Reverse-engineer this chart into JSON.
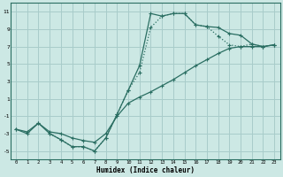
{
  "xlabel": "Humidex (Indice chaleur)",
  "bg_color": "#cce8e4",
  "grid_color": "#a8ccca",
  "line_color": "#2a6e62",
  "xlim": [
    -0.5,
    23.5
  ],
  "ylim": [
    -6.0,
    12.0
  ],
  "xticks": [
    0,
    1,
    2,
    3,
    4,
    5,
    6,
    7,
    8,
    9,
    10,
    11,
    12,
    13,
    14,
    15,
    16,
    17,
    18,
    19,
    20,
    21,
    22,
    23
  ],
  "yticks": [
    -5,
    -3,
    -1,
    1,
    3,
    5,
    7,
    9,
    11
  ],
  "line1_x": [
    0,
    1,
    2,
    3,
    4,
    5,
    6,
    7,
    8,
    9,
    10,
    11,
    12,
    13,
    14,
    15,
    16,
    17,
    18,
    19,
    20,
    21,
    22,
    23
  ],
  "line1_y": [
    -2.5,
    -3.0,
    -1.8,
    -3.0,
    -3.7,
    -4.5,
    -4.5,
    -5.0,
    -3.5,
    -0.8,
    2.0,
    4.8,
    10.8,
    10.5,
    10.8,
    10.8,
    9.5,
    9.3,
    9.2,
    8.5,
    8.3,
    7.3,
    7.0,
    7.2
  ],
  "line2_x": [
    3,
    4,
    5,
    6,
    7,
    8,
    9,
    10,
    11,
    12,
    13,
    14,
    15,
    16,
    17,
    18,
    19,
    20,
    21,
    22,
    23
  ],
  "line2_y": [
    -3.0,
    -3.7,
    -4.5,
    -4.5,
    -5.0,
    -3.5,
    -0.8,
    2.0,
    4.0,
    9.2,
    10.5,
    10.8,
    10.8,
    9.5,
    9.3,
    8.2,
    7.2,
    7.0,
    7.3,
    7.0,
    7.2
  ],
  "line3_x": [
    0,
    1,
    2,
    3,
    4,
    5,
    6,
    7,
    8,
    9,
    10,
    11,
    12,
    13,
    14,
    15,
    16,
    17,
    18,
    19,
    20,
    21,
    22,
    23
  ],
  "line3_y": [
    -2.5,
    -2.8,
    -1.8,
    -2.8,
    -3.0,
    -3.5,
    -3.8,
    -4.0,
    -3.0,
    -1.0,
    0.5,
    1.2,
    1.8,
    2.5,
    3.2,
    4.0,
    4.8,
    5.5,
    6.2,
    6.8,
    7.0,
    7.0,
    7.0,
    7.2
  ]
}
